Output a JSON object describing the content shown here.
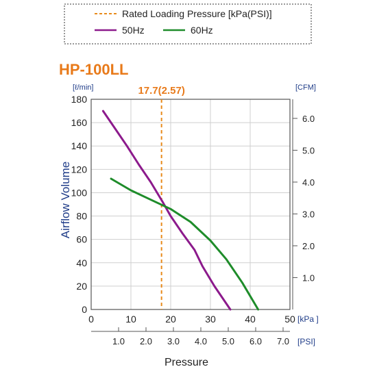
{
  "chart_data": {
    "type": "line",
    "title": "HP-100LL",
    "legend": {
      "placement": "top",
      "entries": [
        {
          "label": "Rated Loading Pressure [kPa(PSI)]",
          "color": "#e88a1a",
          "style": "dashed"
        },
        {
          "label": "50Hz",
          "color": "#8c1a8c",
          "style": "solid"
        },
        {
          "label": "60Hz",
          "color": "#1e8c2a",
          "style": "solid"
        }
      ]
    },
    "xlabel": "Pressure",
    "ylabel": "Airflow Volume",
    "y_unit": "[ℓ/min]",
    "y2_unit": "[CFM]",
    "x_unit": "[kPa ]",
    "x2_unit": "[PSI]",
    "xlim": [
      0,
      50
    ],
    "ylim": [
      0,
      180
    ],
    "x_ticks": [
      "0",
      "10",
      "20",
      "30",
      "40",
      "50"
    ],
    "y_ticks": [
      "0",
      "20",
      "40",
      "60",
      "80",
      "100",
      "120",
      "140",
      "160",
      "180"
    ],
    "y2_ticks": [
      {
        "label": "1.0",
        "value": 1.0
      },
      {
        "label": "2.0",
        "value": 2.0
      },
      {
        "label": "3.0",
        "value": 3.0
      },
      {
        "label": "4.0",
        "value": 4.0
      },
      {
        "label": "5.0",
        "value": 5.0
      },
      {
        "label": "6.0",
        "value": 6.0
      }
    ],
    "x2_ticks": [
      {
        "label": "1.0",
        "value": 1.0
      },
      {
        "label": "2.0",
        "value": 2.0
      },
      {
        "label": "3.0",
        "value": 3.0
      },
      {
        "label": "4.0",
        "value": 4.0
      },
      {
        "label": "5.0",
        "value": 5.0
      },
      {
        "label": "6.0",
        "value": 6.0
      },
      {
        "label": "7.0",
        "value": 7.0
      }
    ],
    "grid": true,
    "rated_pressure": {
      "x": 17.7,
      "label": "17.7(2.57)",
      "color": "#e88a1a"
    },
    "series": [
      {
        "name": "50Hz",
        "color": "#8c1a8c",
        "x": [
          3,
          6,
          9,
          12,
          15,
          18,
          20,
          23,
          26,
          28,
          31,
          35
        ],
        "y": [
          170,
          155,
          140,
          124,
          109,
          92,
          80,
          65,
          51,
          37,
          20,
          0
        ]
      },
      {
        "name": "60Hz",
        "color": "#1e8c2a",
        "x": [
          5,
          10,
          15,
          20,
          25,
          30,
          34,
          38,
          42
        ],
        "y": [
          112,
          102,
          94,
          86,
          75,
          59,
          43,
          23,
          0
        ]
      }
    ]
  }
}
